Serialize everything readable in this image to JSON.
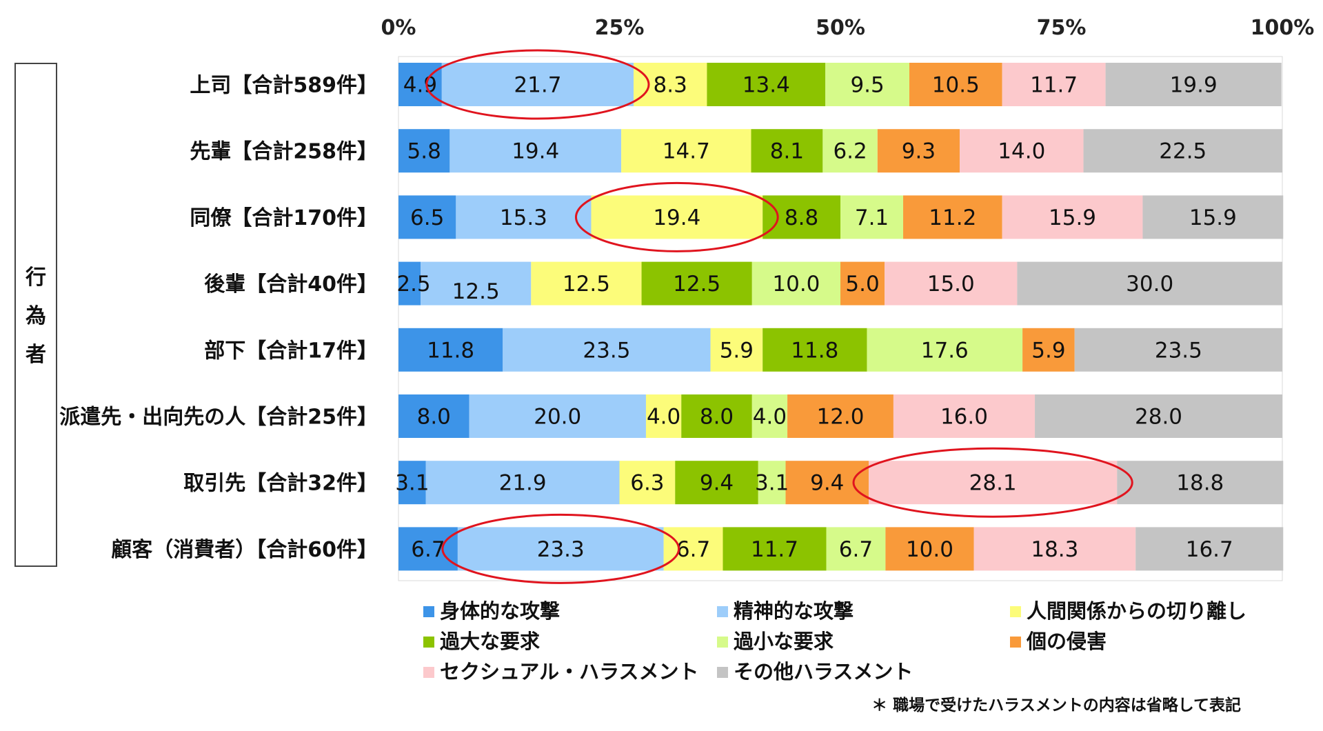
{
  "chart_data": {
    "type": "bar",
    "orientation": "horizontal",
    "stacked": true,
    "percent_stacked": true,
    "xlim": [
      0,
      100
    ],
    "x_ticks": [
      "0%",
      "25%",
      "50%",
      "75%",
      "100%"
    ],
    "y_group_label": "行為者",
    "categories": [
      "上司【合計589件】",
      "先輩【合計258件】",
      "同僚【合計170件】",
      "後輩【合計40件】",
      "部下【合計17件】",
      "派遣先・出向先の人【合計25件】",
      "取引先【合計32件】",
      "顧客（消費者）【合計60件】"
    ],
    "series": [
      {
        "name": "身体的な攻撃",
        "color": "#3d94e8",
        "values": [
          4.9,
          5.8,
          6.5,
          2.5,
          11.8,
          8.0,
          3.1,
          6.7
        ],
        "labels": [
          "4.9",
          "5.8",
          "6.5",
          "2.5",
          "11.8",
          "8.0",
          "3.1",
          "6.7"
        ]
      },
      {
        "name": "精神的な攻撃",
        "color": "#9dcdfa",
        "values": [
          21.7,
          19.4,
          15.3,
          12.5,
          23.5,
          20.0,
          21.9,
          23.3
        ],
        "labels": [
          "21.7",
          "19.4",
          "15.3",
          "12.5",
          "23.5",
          "20.0",
          "21.9",
          "23.3"
        ]
      },
      {
        "name": "人間関係からの切り離し",
        "color": "#fcfc7a",
        "values": [
          8.3,
          14.7,
          19.4,
          12.5,
          5.9,
          4.0,
          6.3,
          6.7
        ],
        "labels": [
          "8.3",
          "14.7",
          "19.4",
          "12.5",
          "5.9",
          "4.0",
          "6.3",
          "6.7"
        ]
      },
      {
        "name": "過大な要求",
        "color": "#8cc300",
        "values": [
          13.4,
          8.1,
          8.8,
          12.5,
          11.8,
          8.0,
          9.4,
          11.7
        ],
        "labels": [
          "13.4",
          "8.1",
          "8.8",
          "12.5",
          "11.8",
          "8.0",
          "9.4",
          "11.7"
        ]
      },
      {
        "name": "過小な要求",
        "color": "#d6fa8a",
        "values": [
          9.5,
          6.2,
          7.1,
          10.0,
          17.6,
          4.0,
          3.1,
          6.7
        ],
        "labels": [
          "9.5",
          "6.2",
          "7.1",
          "10.0",
          "17.6",
          "4.0",
          "3.1",
          "6.7"
        ]
      },
      {
        "name": "個の侵害",
        "color": "#f99a3a",
        "values": [
          10.5,
          9.3,
          11.2,
          5.0,
          5.9,
          12.0,
          9.4,
          10.0
        ],
        "labels": [
          "10.5",
          "9.3",
          "11.2",
          "5.0",
          "5.9",
          "12.0",
          "9.4",
          "10.0"
        ]
      },
      {
        "name": "セクシュアル・ハラスメント",
        "color": "#fcc9cc",
        "values": [
          11.7,
          14.0,
          15.9,
          15.0,
          0,
          16.0,
          28.1,
          18.3
        ],
        "labels": [
          "11.7",
          "14.0",
          "15.9",
          "15.0",
          "",
          "16.0",
          "28.1",
          "18.3"
        ]
      },
      {
        "name": "その他ハラスメント",
        "color": "#c4c4c4",
        "values": [
          19.9,
          22.5,
          15.9,
          30.0,
          23.5,
          28.0,
          18.8,
          16.7
        ],
        "labels": [
          "19.9",
          "22.5",
          "15.9",
          "30.0",
          "23.5",
          "28.0",
          "18.8",
          "16.7"
        ]
      }
    ],
    "highlights": [
      {
        "category_index": 0,
        "series_index": 1,
        "color": "#e0141e"
      },
      {
        "category_index": 2,
        "series_index": 2,
        "color": "#e0141e"
      },
      {
        "category_index": 6,
        "series_index": 6,
        "color": "#e0141e"
      },
      {
        "category_index": 7,
        "series_index": 1,
        "color": "#e0141e"
      }
    ],
    "legend_position": "bottom",
    "grid": false,
    "footnote": "＊ 職場で受けたハラスメントの内容は省略して表記"
  }
}
